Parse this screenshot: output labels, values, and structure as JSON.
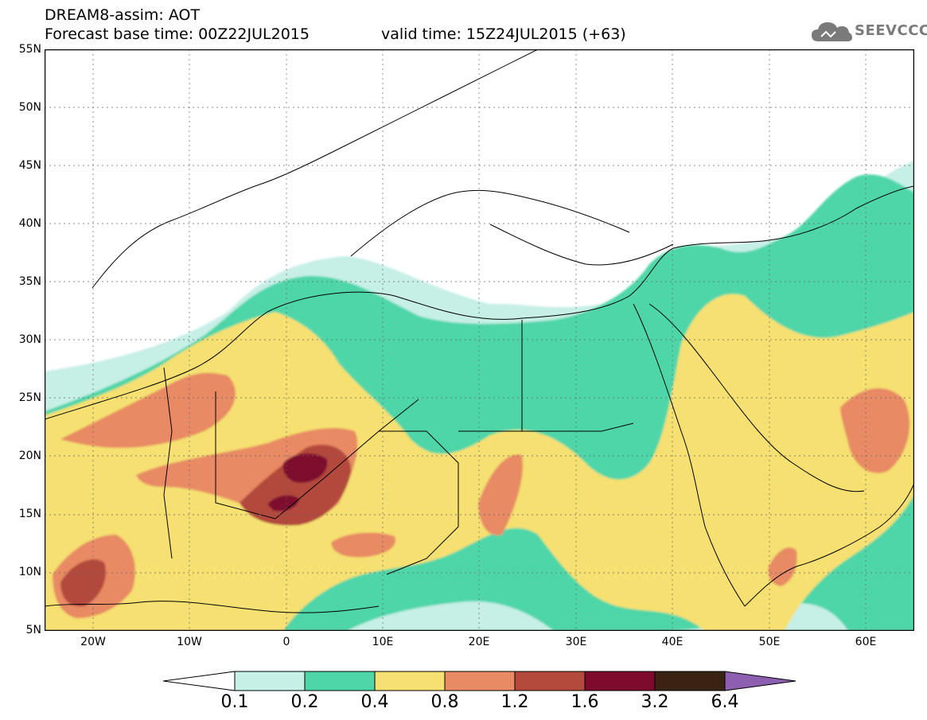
{
  "header": {
    "line1": "DREAM8-assim: AOT",
    "base_time": "Forecast base time: 00Z22JUL2015",
    "valid_time": "valid time: 15Z24JUL2015 (+63)"
  },
  "logo": {
    "text": "SEEVCCC",
    "icon": "cloud-icon",
    "color": "#7a7a7a"
  },
  "axes": {
    "lat_labels": [
      "55N",
      "50N",
      "45N",
      "40N",
      "35N",
      "30N",
      "25N",
      "20N",
      "15N",
      "10N",
      "5N"
    ],
    "lon_labels": [
      "20W",
      "10W",
      "0",
      "10E",
      "20E",
      "30E",
      "40E",
      "50E",
      "60E"
    ],
    "lat_range": [
      5,
      55
    ],
    "lon_range": [
      -25,
      65
    ]
  },
  "colorbar": {
    "labels": [
      "0.1",
      "0.2",
      "0.4",
      "0.8",
      "1.2",
      "1.6",
      "3.2",
      "6.4"
    ],
    "colors": {
      "lt01": "#ffffff",
      "c1": "#c6efe6",
      "c2": "#4fd6a8",
      "c3": "#f5e071",
      "c4": "#e88a63",
      "c5": "#b34a3c",
      "c6": "#7e0b2e",
      "c7": "#3b2314",
      "gt64": "#8e5fb0"
    }
  }
}
